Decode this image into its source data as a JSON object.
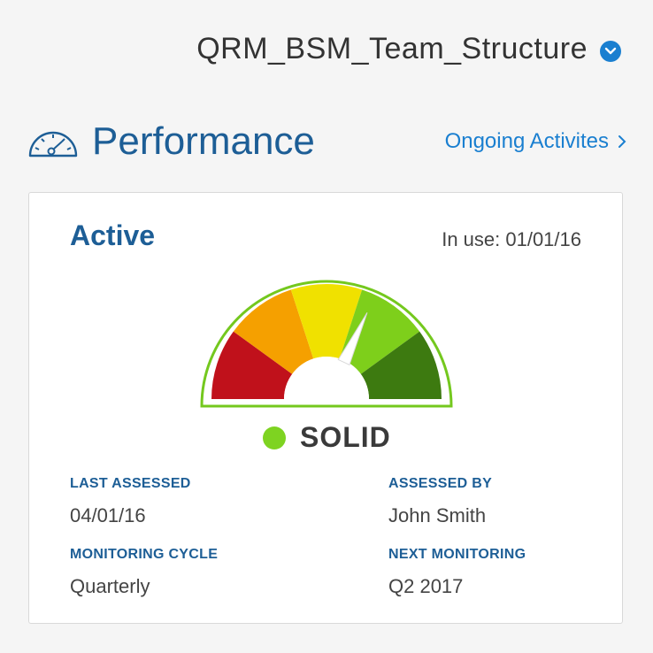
{
  "header": {
    "workspace_name": "QRM_BSM_Team_Structure"
  },
  "section": {
    "title": "Performance",
    "link_label": "Ongoing Activites"
  },
  "card": {
    "status_title": "Active",
    "in_use": "In use: 01/01/16",
    "gauge": {
      "segments": [
        "red",
        "orange",
        "yellow",
        "light-green",
        "dark-green"
      ],
      "needle_level": 0.64,
      "colors": [
        "#c0111b",
        "#f5a000",
        "#f0e100",
        "#7ecf1b",
        "#3d7a10"
      ]
    },
    "rating": {
      "label": "SOLID",
      "color": "#7ed321"
    },
    "fields": {
      "last_assessed": {
        "label": "LAST ASSESSED",
        "value": "04/01/16"
      },
      "assessed_by": {
        "label": "ASSESSED BY",
        "value": "John Smith"
      },
      "monitoring_cycle": {
        "label": "MONITORING CYCLE",
        "value": "Quarterly"
      },
      "next_monitoring": {
        "label": "NEXT MONITORING",
        "value": "Q2 2017"
      }
    }
  }
}
